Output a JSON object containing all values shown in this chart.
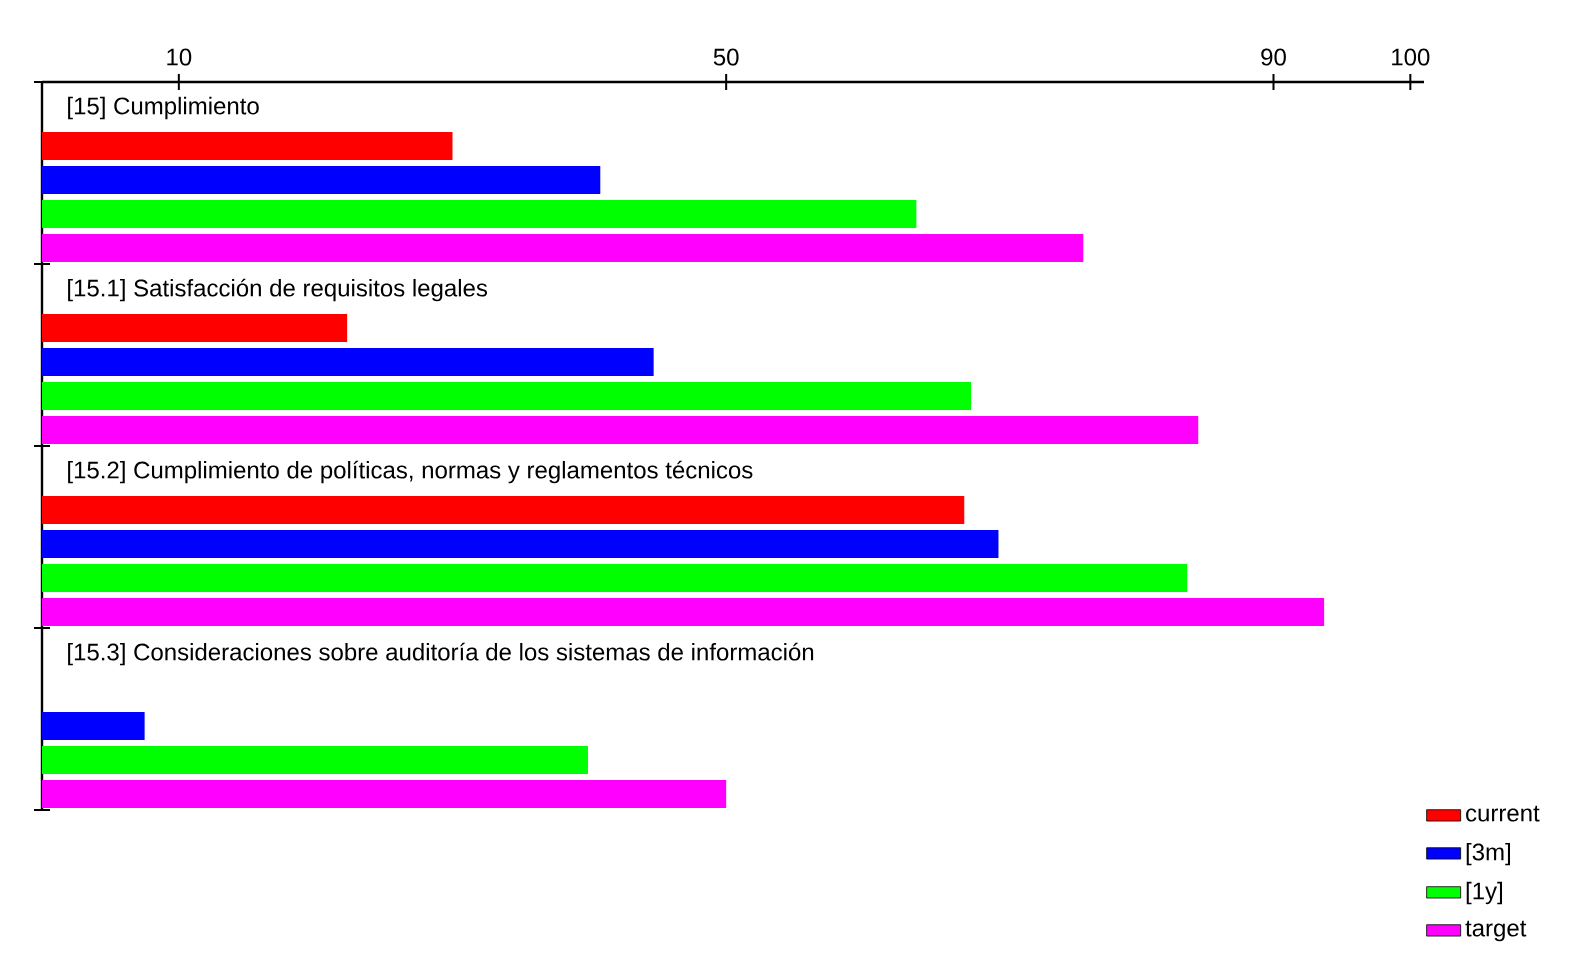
{
  "chart_data": {
    "type": "bar",
    "orientation": "horizontal",
    "categories": [
      "[15] Cumplimiento",
      "[15.1] Satisfacción de requisitos legales",
      "[15.2] Cumplimiento de políticas, normas y reglamentos técnicos",
      "[15.3] Consideraciones sobre auditoría de los sistemas de información"
    ],
    "series": [
      {
        "name": "current",
        "color": "#ff0000",
        "values": [
          30,
          22.3,
          67.4,
          null
        ]
      },
      {
        "name": "[3m]",
        "color": "#0000ff",
        "values": [
          40.8,
          44.7,
          69.9,
          7.5
        ]
      },
      {
        "name": "[1y]",
        "color": "#00ff00",
        "values": [
          63.9,
          67.9,
          83.7,
          39.9
        ]
      },
      {
        "name": "target",
        "color": "#ff00ff",
        "values": [
          76.1,
          84.5,
          93.7,
          50
        ]
      }
    ],
    "xlim": [
      0,
      101
    ],
    "xticks": [
      10,
      50,
      90,
      100
    ],
    "legend": "bottom right"
  }
}
